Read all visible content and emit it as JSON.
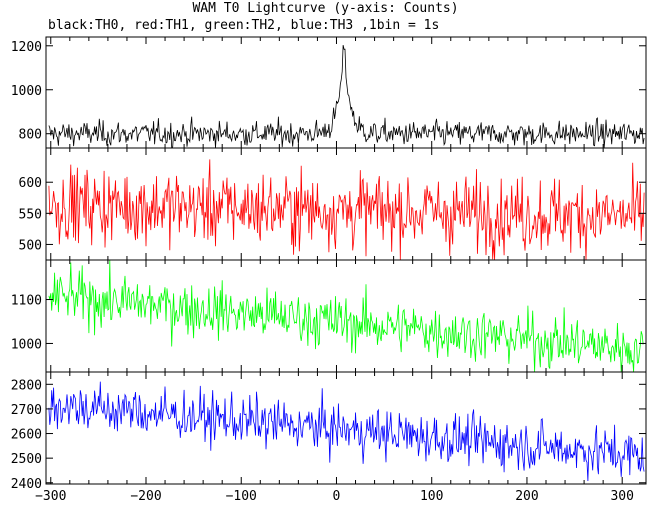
{
  "title": "WAM T0 Lightcurve (y-axis: Counts)",
  "subtitle": "black:TH0, red:TH1, green:TH2, blue:TH3 ,1bin = 1s",
  "chart_data": {
    "type": "line",
    "x_range": [
      -305,
      325
    ],
    "x_ticks": [
      -300,
      -200,
      -100,
      0,
      100,
      200,
      300
    ],
    "x_tick_labels": [
      "−300",
      "−200",
      "−100",
      "0",
      "100",
      "200",
      "300"
    ],
    "bin_seconds": 1,
    "panels": [
      {
        "name": "TH0",
        "color": "#000000",
        "ylim": [
          735,
          1240
        ],
        "y_ticks": [
          800,
          1000,
          1200
        ],
        "y_tick_labels": [
          "800",
          "1000",
          "1200"
        ],
        "baseline": 800,
        "noise": 28,
        "trend_end": 800,
        "peak": {
          "x": 8,
          "height": 400,
          "width": 6
        }
      },
      {
        "name": "TH1",
        "color": "#ff0000",
        "ylim": [
          475,
          655
        ],
        "y_ticks": [
          500,
          550,
          600
        ],
        "y_tick_labels": [
          "500",
          "550",
          "600"
        ],
        "baseline": 565,
        "noise": 30,
        "trend_end": 545,
        "peak": null
      },
      {
        "name": "TH2",
        "color": "#00ff00",
        "ylim": [
          935,
          1190
        ],
        "y_ticks": [
          1000,
          1100
        ],
        "y_tick_labels": [
          "1000",
          "1100"
        ],
        "baseline": 1110,
        "noise": 30,
        "trend_end": 985,
        "peak": null
      },
      {
        "name": "TH3",
        "color": "#0000ff",
        "ylim": [
          2395,
          2850
        ],
        "y_ticks": [
          2400,
          2500,
          2600,
          2700,
          2800
        ],
        "y_tick_labels": [
          "2400",
          "2500",
          "2600",
          "2700",
          "2800"
        ],
        "baseline": 2720,
        "noise": 50,
        "trend_end": 2510,
        "peak": null
      }
    ]
  }
}
